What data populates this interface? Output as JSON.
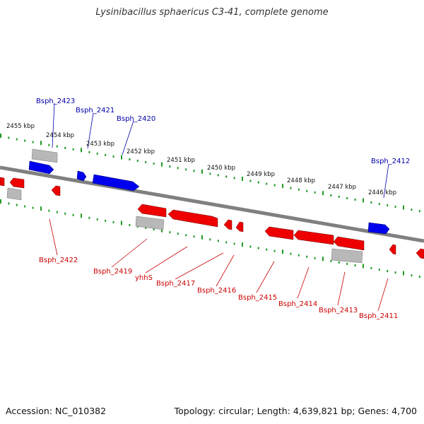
{
  "header": {
    "title": "Lysinibacillus sphaericus C3-41, complete genome"
  },
  "footer": {
    "accession": "Accession: NC_010382",
    "summary": "Topology: circular; Length: 4,639,821 bp; Genes: 4,700"
  },
  "colors": {
    "forward_gene": "#0000ee",
    "reverse_gene": "#ee0000",
    "rna_gene": "#b0b0b0",
    "backbone": "#808080",
    "ticks": "#229922",
    "label_forward": "#0000aa",
    "label_reverse": "#cc0000"
  },
  "scale_labels": [
    "2455 kbp",
    "2454 kbp",
    "2453 kbp",
    "2452 kbp",
    "2451 kbp",
    "2450 kbp",
    "2449 kbp",
    "2448 kbp",
    "2447 kbp",
    "2446 kbp"
  ],
  "forward_labels": [
    "Bsph_2423",
    "Bsph_2421",
    "Bsph_2420",
    "Bsph_2412"
  ],
  "reverse_labels": [
    "Bsph_2422",
    "Bsph_2419",
    "yhhS",
    "Bsph_2417",
    "Bsph_2416",
    "Bsph_2415",
    "Bsph_2414",
    "Bsph_2413",
    "Bsph_2411"
  ]
}
